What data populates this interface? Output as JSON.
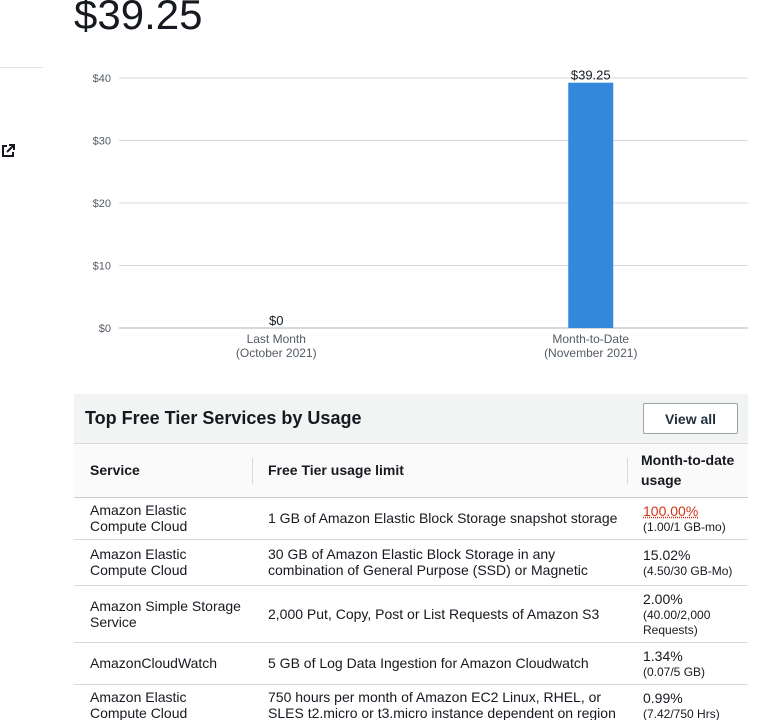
{
  "summary": {
    "total_amount": "$39.25"
  },
  "icons": {
    "external_link": "external-link-icon"
  },
  "chart_data": {
    "type": "bar",
    "categories": [
      [
        "Last Month",
        "(October 2021)"
      ],
      [
        "Month-to-Date",
        "(November 2021)"
      ]
    ],
    "values": [
      0,
      39.25
    ],
    "value_labels": [
      "$0",
      "$39.25"
    ],
    "ylim": [
      0,
      40
    ],
    "yticks": [
      0,
      10,
      20,
      30,
      40
    ],
    "ytick_labels": [
      "$0",
      "$10",
      "$20",
      "$30",
      "$40"
    ],
    "grid": true,
    "bar_color": "#3488dc"
  },
  "free_tier": {
    "title": "Top Free Tier Services by Usage",
    "view_all_label": "View all",
    "columns": [
      "Service",
      "Free Tier usage limit",
      "Month-to-date usage"
    ],
    "rows": [
      {
        "service": "Amazon Elastic Compute Cloud",
        "limit": "1 GB of Amazon Elastic Block Storage snapshot storage",
        "percent": "100.00%",
        "detail": "(1.00/1 GB-mo)"
      },
      {
        "service": "Amazon Elastic Compute Cloud",
        "limit": "30 GB of Amazon Elastic Block Storage in any combination of General Purpose (SSD) or Magnetic",
        "percent": "15.02%",
        "detail": "(4.50/30 GB-Mo)"
      },
      {
        "service": "Amazon Simple Storage Service",
        "limit": "2,000 Put, Copy, Post or List Requests of Amazon S3",
        "percent": "2.00%",
        "detail": "(40.00/2,000 Requests)"
      },
      {
        "service": "AmazonCloudWatch",
        "limit": "5 GB of Log Data Ingestion for Amazon Cloudwatch",
        "percent": "1.34%",
        "detail": "(0.07/5 GB)"
      },
      {
        "service": "Amazon Elastic Compute Cloud",
        "limit": "750 hours per month of Amazon EC2 Linux, RHEL, or SLES t2.micro or t3.micro instance dependent on region",
        "percent": "0.99%",
        "detail": "(7.42/750 Hrs)"
      }
    ],
    "over_limit_color": "#d13212"
  }
}
